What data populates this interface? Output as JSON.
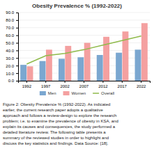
{
  "chart_data": {
    "type": "bar",
    "title": "Obesity Prevalence % (1992-2022)",
    "categories": [
      "1992",
      "1997",
      "2002",
      "2007",
      "2012",
      "2017",
      "2022"
    ],
    "series": [
      {
        "name": "Men",
        "type": "bar",
        "color": "#7BA7D0",
        "values": [
          21,
          26,
          29,
          31,
          34,
          37,
          41
        ]
      },
      {
        "name": "Women",
        "type": "bar",
        "color": "#F4A0A0",
        "values": [
          19,
          41,
          46,
          50,
          58,
          65,
          76
        ]
      },
      {
        "name": "Overall",
        "type": "line",
        "color": "#8FBA4A",
        "values": [
          22,
          33,
          36,
          41,
          47,
          53,
          59
        ]
      }
    ],
    "ylim": [
      0,
      90
    ],
    "yticks": [
      {
        "value": 0,
        "label": "0.0"
      },
      {
        "value": 10,
        "label": "10.0"
      },
      {
        "value": 20,
        "label": "20.0"
      },
      {
        "value": 30,
        "label": "30.0"
      },
      {
        "value": 40,
        "label": "40.0"
      },
      {
        "value": 50,
        "label": "50.0"
      },
      {
        "value": 60,
        "label": "60.0"
      },
      {
        "value": 70,
        "label": "70.0"
      },
      {
        "value": 80,
        "label": "80.0"
      },
      {
        "value": 90,
        "label": "90.0"
      }
    ],
    "grid": true,
    "legend": "bottom",
    "annotations": [
      "Figure 2: Obesity Prevalence % (1992-2022). As indicated\nearlier, the current research paper adopts a qualitative\napproach and follows a review-design to explore the research\nproblem; i.e. to examine the prevalence of obesity in KSA, and\nexplain its causes and consequences, the study performed a\ndetailed literature review. The following table presents a\nsummary of the reviewed studies in order to highlight and\ndiscuss the key statistics and findings. Data Source: [18]."
    ]
  }
}
